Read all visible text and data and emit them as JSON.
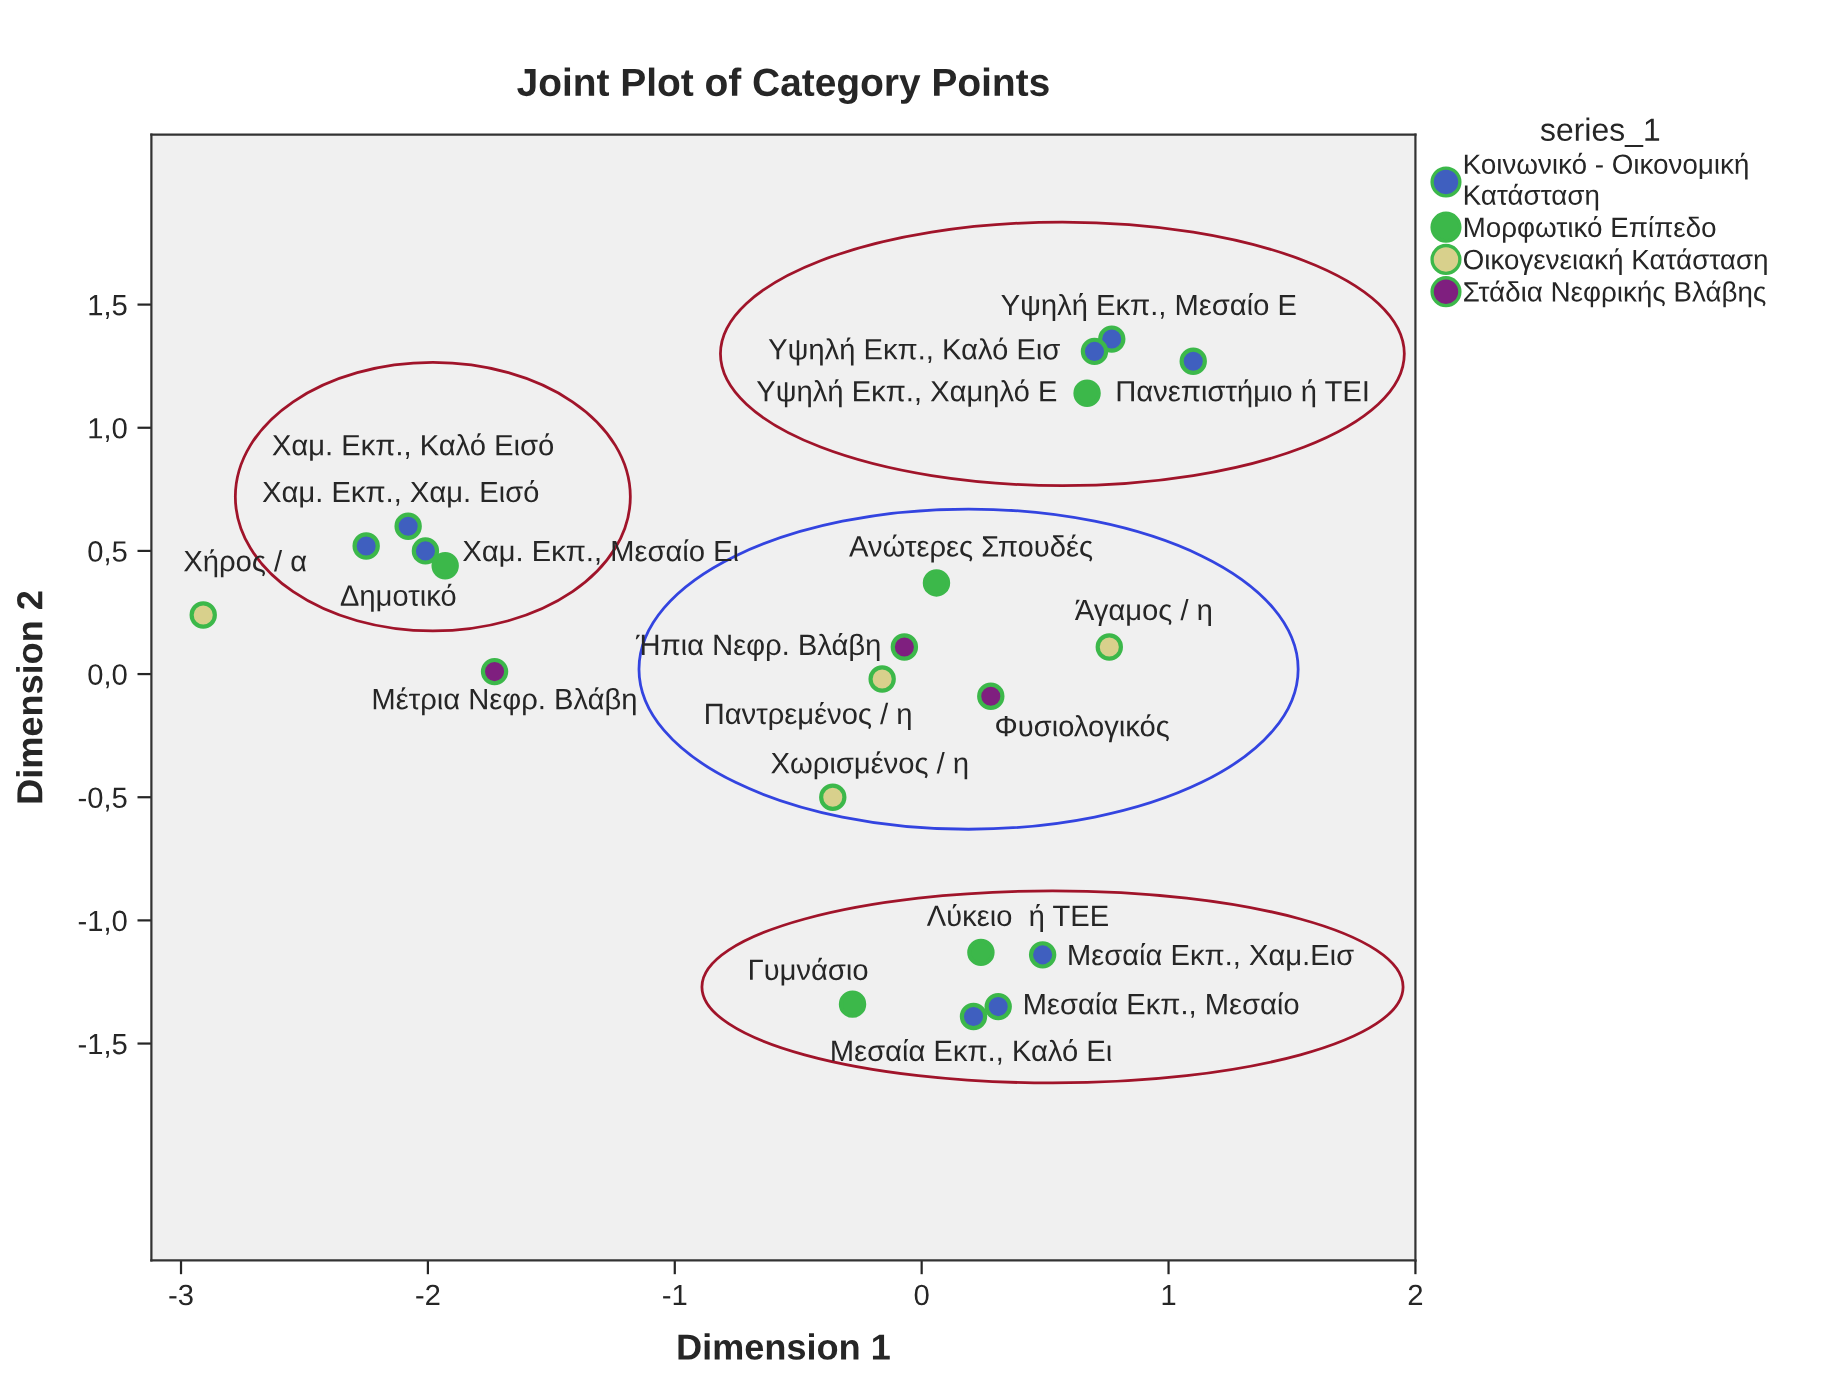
{
  "chart_data": {
    "type": "scatter",
    "title": "Joint Plot of Category Points",
    "xlabel": "Dimension 1",
    "ylabel": "Dimension 2",
    "legend_title": "series_1",
    "legend": "top right",
    "grid": false,
    "marker": "circle",
    "xlim": [
      -3.12,
      2
    ],
    "ylim": [
      -2.38,
      2.19
    ],
    "xticks": [
      -3,
      -2,
      -1,
      0,
      1,
      2
    ],
    "yticks": [
      {
        "value": -1.5,
        "label": "-1,5"
      },
      {
        "value": -1.0,
        "label": "-1,0"
      },
      {
        "value": -0.5,
        "label": "-0,5"
      },
      {
        "value": 0.0,
        "label": "0,0"
      },
      {
        "value": 0.5,
        "label": "0,5"
      },
      {
        "value": 1.0,
        "label": "1,0"
      },
      {
        "value": 1.5,
        "label": "1,5"
      }
    ],
    "series": [
      {
        "name": "Κοινωνικό - Οικονομική\nΚατάσταση",
        "color": "#3f5fbf",
        "x": [
          0.77,
          0.7,
          1.1,
          -2.25,
          -2.08,
          -2.01,
          0.49,
          0.31,
          0.21
        ],
        "values": [
          1.36,
          1.31,
          1.27,
          0.52,
          0.6,
          0.5,
          -1.14,
          -1.35,
          -1.39
        ]
      },
      {
        "name": "Μορφωτικό Επίπεδο",
        "color": "#3cb84a",
        "x": [
          0.67,
          -1.93,
          0.06,
          0.24,
          -0.28
        ],
        "values": [
          1.14,
          0.44,
          0.37,
          -1.13,
          -1.34
        ]
      },
      {
        "name": "Οικογενειακή Κατάσταση",
        "color": "#d8d08c",
        "x": [
          -2.91,
          0.76,
          -0.16,
          -0.36
        ],
        "values": [
          0.24,
          0.11,
          -0.02,
          -0.5
        ]
      },
      {
        "name": "Στάδια Νεφρικής Βλάβης",
        "color": "#7f1f7f",
        "x": [
          -0.07,
          0.28,
          -1.73
        ],
        "values": [
          0.11,
          -0.09,
          0.01
        ]
      }
    ],
    "annotations": [
      {
        "text": "Υψηλή Εκπ., Μεσαίο Ε",
        "x": 0.77,
        "y": 1.36
      },
      {
        "text": "Υψηλή Εκπ., Καλό Εισ",
        "x": 0.7,
        "y": 1.31
      },
      {
        "text": "Υψηλή Εκπ., Χαμηλό Ε",
        "x": 0.67,
        "y": 1.14
      },
      {
        "text": "Πανεπιστήμιο ή ΤΕΙ",
        "x": 0.67,
        "y": 1.14
      },
      {
        "text": "Χαμ. Εκπ., Καλό Εισό",
        "x": -2.08,
        "y": 0.6
      },
      {
        "text": "Χαμ. Εκπ., Χαμ. Εισό",
        "x": -2.25,
        "y": 0.52
      },
      {
        "text": "Χαμ. Εκπ., Μεσαίο Ει",
        "x": -2.01,
        "y": 0.5
      },
      {
        "text": "Δημοτικό",
        "x": -1.93,
        "y": 0.44
      },
      {
        "text": "Χήρος / α",
        "x": -2.91,
        "y": 0.24
      },
      {
        "text": "Μέτρια Νεφρ. Βλάβη",
        "x": -1.73,
        "y": 0.01
      },
      {
        "text": "Ανώτερες Σπουδές",
        "x": 0.06,
        "y": 0.37
      },
      {
        "text": "Άγαμος / η",
        "x": 0.76,
        "y": 0.11
      },
      {
        "text": "Ήπια Νεφρ. Βλάβη",
        "x": -0.07,
        "y": 0.11
      },
      {
        "text": "Παντρεμένος / η",
        "x": -0.16,
        "y": -0.02
      },
      {
        "text": "Φυσιολογικός",
        "x": 0.28,
        "y": -0.09
      },
      {
        "text": "Χωρισμένος / η",
        "x": -0.36,
        "y": -0.5
      },
      {
        "text": "Λύκειο  ή ΤΕΕ",
        "x": 0.24,
        "y": -1.13
      },
      {
        "text": "Μεσαία Εκπ., Χαμ.Εισ",
        "x": 0.49,
        "y": -1.14
      },
      {
        "text": "Γυμνάσιο",
        "x": -0.28,
        "y": -1.34
      },
      {
        "text": "Μεσαία Εκπ., Μεσαίο",
        "x": 0.31,
        "y": -1.35
      },
      {
        "text": "Μεσαία Εκπ., Καλό Ει",
        "x": 0.21,
        "y": -1.39
      }
    ]
  }
}
